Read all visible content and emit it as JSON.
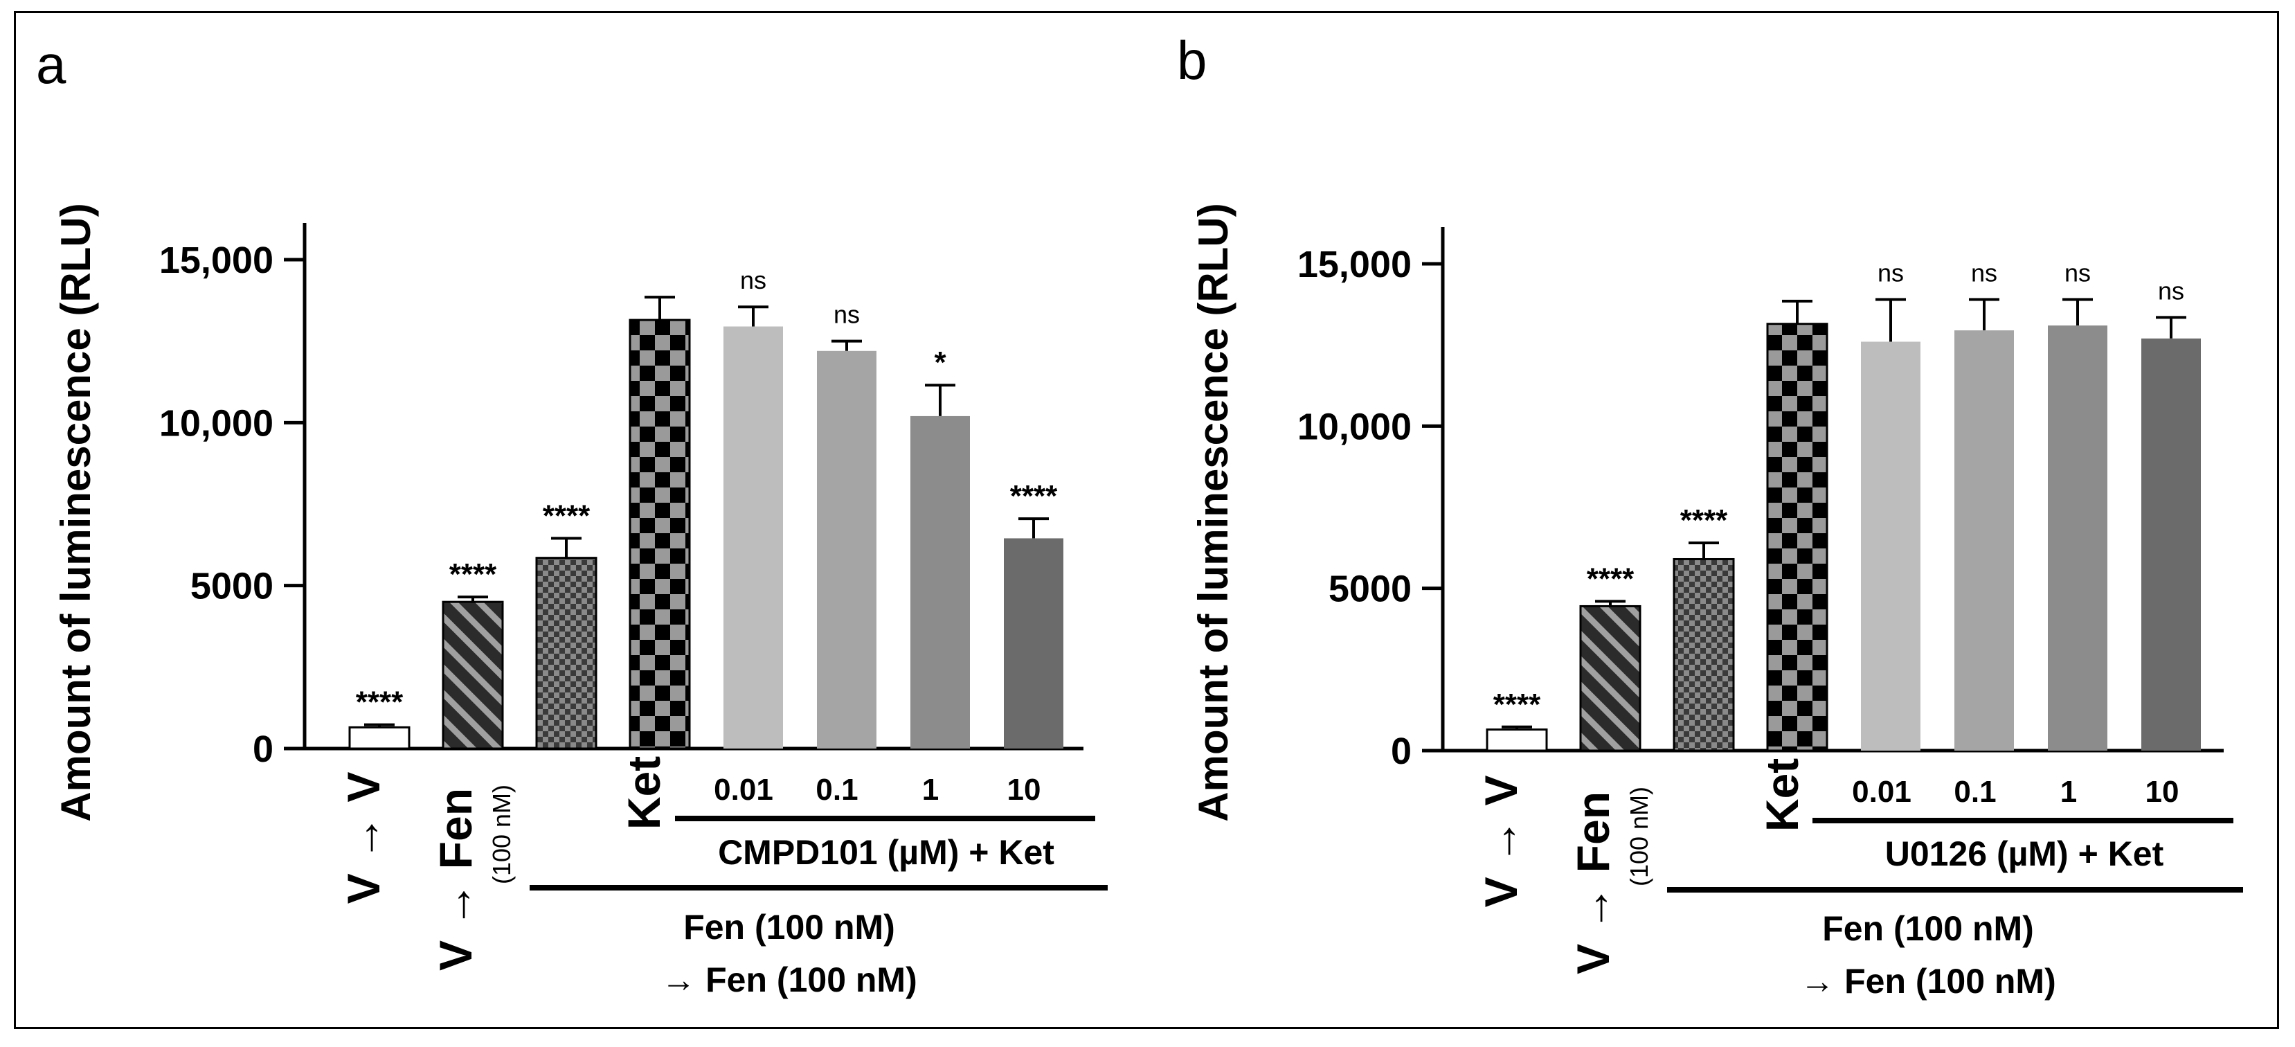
{
  "chart_data": [
    {
      "panel_label": "a",
      "type": "bar",
      "ylabel": "Amount of luminescence (RLU)",
      "ylim": [
        0,
        16000
      ],
      "yticks": [
        0,
        5000,
        10000,
        15000
      ],
      "yticklabels": [
        "0",
        "5000",
        "10,000",
        "15,000"
      ],
      "bars": [
        {
          "key": "vv",
          "value": 650,
          "error": 80,
          "sig": "****",
          "pattern": "white"
        },
        {
          "key": "vfen",
          "value": 4500,
          "error": 150,
          "sig": "****",
          "pattern": "stripe"
        },
        {
          "key": "fenfen",
          "value": 5850,
          "error": 600,
          "sig": "****",
          "pattern": "smallcheck"
        },
        {
          "key": "ket",
          "value": 13150,
          "error": 700,
          "sig": "",
          "pattern": "bigcheck"
        },
        {
          "key": "c001",
          "value": 12950,
          "error": 600,
          "sig": "ns",
          "pattern": "#bdbdbd"
        },
        {
          "key": "c01",
          "value": 12200,
          "error": 300,
          "sig": "ns",
          "pattern": "#a5a5a5"
        },
        {
          "key": "c1",
          "value": 10200,
          "error": 950,
          "sig": "*",
          "pattern": "#8c8c8c"
        },
        {
          "key": "c10",
          "value": 6450,
          "error": 600,
          "sig": "****",
          "pattern": "#6b6b6b"
        }
      ],
      "labels": {
        "vv": "V → V",
        "vfen": "V → Fen",
        "conc": "(100 nM)",
        "ket": "Ket",
        "doses": [
          "0.01",
          "0.1",
          "1",
          "10"
        ],
        "drug": "CMPD101 (µM) + Ket",
        "pre1": "Fen (100 nM)",
        "pre2": "→ Fen (100 nM)"
      }
    },
    {
      "panel_label": "b",
      "type": "bar",
      "ylabel": "Amount of luminescence (RLU)",
      "ylim": [
        0,
        16000
      ],
      "yticks": [
        0,
        5000,
        10000,
        15000
      ],
      "yticklabels": [
        "0",
        "5000",
        "10,000",
        "15,000"
      ],
      "bars": [
        {
          "key": "vv",
          "value": 650,
          "error": 80,
          "sig": "****",
          "pattern": "white"
        },
        {
          "key": "vfen",
          "value": 4450,
          "error": 150,
          "sig": "****",
          "pattern": "stripe"
        },
        {
          "key": "fenfen",
          "value": 5900,
          "error": 500,
          "sig": "****",
          "pattern": "smallcheck"
        },
        {
          "key": "ket",
          "value": 13150,
          "error": 700,
          "sig": "",
          "pattern": "bigcheck"
        },
        {
          "key": "u001",
          "value": 12600,
          "error": 1300,
          "sig": "ns",
          "pattern": "#bdbdbd"
        },
        {
          "key": "u01",
          "value": 12950,
          "error": 950,
          "sig": "ns",
          "pattern": "#a5a5a5"
        },
        {
          "key": "u1",
          "value": 13100,
          "error": 800,
          "sig": "ns",
          "pattern": "#8c8c8c"
        },
        {
          "key": "u10",
          "value": 12700,
          "error": 650,
          "sig": "ns",
          "pattern": "#6b6b6b"
        }
      ],
      "labels": {
        "vv": "V → V",
        "vfen": "V → Fen",
        "conc": "(100 nM)",
        "ket": "Ket",
        "doses": [
          "0.01",
          "0.1",
          "1",
          "10"
        ],
        "drug": "U0126 (µM) + Ket",
        "pre1": "Fen (100 nM)",
        "pre2": "→ Fen (100 nM)"
      }
    }
  ]
}
